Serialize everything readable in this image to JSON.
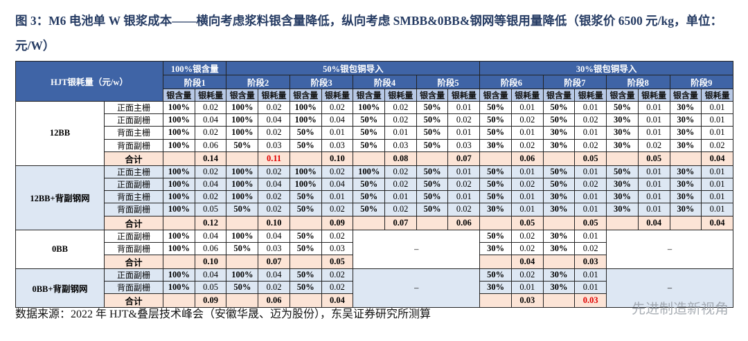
{
  "header": {
    "title": "图 3：M6 电池单 W 银浆成本——横向考虑浆料银含量降低，纵向考虑 SMBB&0BB&钢网等银用量降低（银浆价 6500 元/kg，单位：元/W）",
    "source": "数据来源：2022 年 HJT&叠层技术峰会（安徽华晟、迈为股份），东吴证券研究所测算",
    "watermark": "先进制造新视角"
  },
  "table": {
    "corner": "HJT银耗量（元/w）",
    "levels": [
      {
        "label": "100%银含量",
        "stages": [
          "阶段1"
        ]
      },
      {
        "label": "50%银包铜导入",
        "stages": [
          "阶段2",
          "阶段3",
          "阶段4",
          "阶段5"
        ]
      },
      {
        "label": "30%银包铜导入",
        "stages": [
          "阶段6",
          "阶段7",
          "阶段8",
          "阶段9"
        ]
      }
    ],
    "subheads": [
      "银含量",
      "银耗量"
    ],
    "highlight_color": "#e00000",
    "groups": [
      {
        "name": "12BB",
        "shade": "#ffffff",
        "rows": [
          {
            "label": "正面主栅",
            "cells": [
              [
                "100%",
                "0.02"
              ],
              [
                "100%",
                "0.02"
              ],
              [
                "100%",
                "0.02"
              ],
              [
                "100%",
                "0.02"
              ],
              [
                "50%",
                "0.01"
              ],
              [
                "50%",
                "0.01"
              ],
              [
                "50%",
                "0.01"
              ],
              [
                "50%",
                "0.01"
              ],
              [
                "30%",
                "0.01"
              ]
            ]
          },
          {
            "label": "正面副栅",
            "cells": [
              [
                "100%",
                "0.04"
              ],
              [
                "100%",
                "0.04"
              ],
              [
                "100%",
                "0.04"
              ],
              [
                "50%",
                "0.02"
              ],
              [
                "50%",
                "0.02"
              ],
              [
                "50%",
                "0.02"
              ],
              [
                "50%",
                "0.02"
              ],
              [
                "30%",
                "0.01"
              ],
              [
                "30%",
                "0.01"
              ]
            ]
          },
          {
            "label": "背面主栅",
            "cells": [
              [
                "100%",
                "0.02"
              ],
              [
                "100%",
                "0.02"
              ],
              [
                "50%",
                "0.01"
              ],
              [
                "50%",
                "0.01"
              ],
              [
                "50%",
                "0.01"
              ],
              [
                "50%",
                "0.01"
              ],
              [
                "30%",
                "0.01"
              ],
              [
                "30%",
                "0.01"
              ],
              [
                "30%",
                "0.01"
              ]
            ]
          },
          {
            "label": "背面副栅",
            "cells": [
              [
                "100%",
                "0.06"
              ],
              [
                "50%",
                "0.03"
              ],
              [
                "50%",
                "0.03"
              ],
              [
                "50%",
                "0.03"
              ],
              [
                "50%",
                "0.03"
              ],
              [
                "30%",
                "0.02"
              ],
              [
                "30%",
                "0.02"
              ],
              [
                "30%",
                "0.02"
              ],
              [
                "30%",
                "0.02"
              ]
            ]
          }
        ],
        "total": {
          "label": "合计",
          "values": [
            "0.14",
            "0.11",
            "0.10",
            "0.08",
            "0.07",
            "0.06",
            "0.05",
            "0.05",
            "0.04"
          ],
          "highlight_index": 1
        }
      },
      {
        "name": "12BB+背副钢网",
        "shade": "#dde7f3",
        "rows": [
          {
            "label": "正面主栅",
            "cells": [
              [
                "100%",
                "0.02"
              ],
              [
                "100%",
                "0.02"
              ],
              [
                "100%",
                "0.02"
              ],
              [
                "100%",
                "0.02"
              ],
              [
                "50%",
                "0.01"
              ],
              [
                "50%",
                "0.01"
              ],
              [
                "50%",
                "0.01"
              ],
              [
                "50%",
                "0.01"
              ],
              [
                "30%",
                "0.01"
              ]
            ]
          },
          {
            "label": "正面副栅",
            "cells": [
              [
                "100%",
                "0.04"
              ],
              [
                "100%",
                "0.04"
              ],
              [
                "100%",
                "0.04"
              ],
              [
                "50%",
                "0.02"
              ],
              [
                "50%",
                "0.02"
              ],
              [
                "50%",
                "0.02"
              ],
              [
                "50%",
                "0.02"
              ],
              [
                "30%",
                "0.01"
              ],
              [
                "30%",
                "0.01"
              ]
            ]
          },
          {
            "label": "背面主栅",
            "cells": [
              [
                "100%",
                "0.02"
              ],
              [
                "100%",
                "0.02"
              ],
              [
                "50%",
                "0.01"
              ],
              [
                "50%",
                "0.01"
              ],
              [
                "50%",
                "0.01"
              ],
              [
                "50%",
                "0.01"
              ],
              [
                "30%",
                "0.01"
              ],
              [
                "30%",
                "0.01"
              ],
              [
                "30%",
                "0.01"
              ]
            ]
          },
          {
            "label": "背面副栅",
            "cells": [
              [
                "100%",
                "0.05"
              ],
              [
                "50%",
                "0.02"
              ],
              [
                "50%",
                "0.02"
              ],
              [
                "50%",
                "0.02"
              ],
              [
                "50%",
                "0.02"
              ],
              [
                "30%",
                "0.01"
              ],
              [
                "30%",
                "0.01"
              ],
              [
                "30%",
                "0.01"
              ],
              [
                "30%",
                "0.01"
              ]
            ]
          }
        ],
        "total": {
          "label": "合计",
          "values": [
            "0.12",
            "0.10",
            "0.09",
            "0.07",
            "0.06",
            "0.05",
            "0.05",
            "0.04",
            "0.04"
          ]
        }
      },
      {
        "name": "0BB",
        "shade": "#ffffff",
        "placeholders": [
          "–",
          "–"
        ],
        "rows": [
          {
            "label": "正面副栅",
            "cells": [
              [
                "100%",
                "0.04"
              ],
              [
                "100%",
                "0.04"
              ],
              [
                "50%",
                "0.02"
              ],
              null,
              null,
              [
                "50%",
                "0.02"
              ],
              [
                "30%",
                "0.01"
              ],
              null,
              null
            ]
          },
          {
            "label": "背面副栅",
            "cells": [
              [
                "100%",
                "0.06"
              ],
              [
                "50%",
                "0.03"
              ],
              [
                "50%",
                "0.03"
              ],
              null,
              null,
              [
                "30%",
                "0.02"
              ],
              [
                "30%",
                "0.02"
              ],
              null,
              null
            ]
          }
        ],
        "total": {
          "label": "合计",
          "values": [
            "0.10",
            "0.07",
            "0.05",
            null,
            null,
            "0.04",
            "0.03",
            null,
            null
          ]
        }
      },
      {
        "name": "0BB+背副钢网",
        "shade": "#dde7f3",
        "placeholders": [
          "–",
          "–"
        ],
        "rows": [
          {
            "label": "正面副栅",
            "cells": [
              [
                "100%",
                "0.04"
              ],
              [
                "100%",
                "0.04"
              ],
              [
                "50%",
                "0.02"
              ],
              null,
              null,
              [
                "50%",
                "0.02"
              ],
              [
                "30%",
                "0.01"
              ],
              null,
              null
            ]
          },
          {
            "label": "背面副栅",
            "cells": [
              [
                "100%",
                "0.05"
              ],
              [
                "50%",
                "0.02"
              ],
              [
                "50%",
                "0.02"
              ],
              null,
              null,
              [
                "30%",
                "0.01"
              ],
              [
                "30%",
                "0.01"
              ],
              null,
              null
            ]
          }
        ],
        "total": {
          "label": "合计",
          "values": [
            "0.09",
            "0.06",
            "0.04",
            null,
            null,
            "0.03",
            "0.03",
            null,
            null
          ],
          "highlight_index": 6
        }
      }
    ]
  }
}
